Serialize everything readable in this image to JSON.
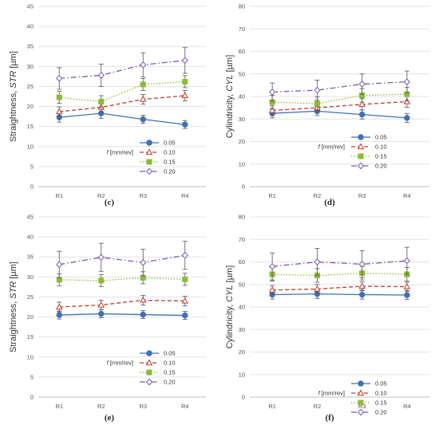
{
  "legend_title": "f [mm/rev]",
  "series_style": [
    {
      "name": "0.05",
      "color": "#3e70b5",
      "dash": "",
      "marker": "circle"
    },
    {
      "name": "0.10",
      "color": "#c0392b",
      "dash": "5,3",
      "marker": "triangle"
    },
    {
      "name": "0.15",
      "color": "#8dbb35",
      "dash": "1.5,2",
      "marker": "square"
    },
    {
      "name": "0.20",
      "color": "#7a5aa6",
      "dash": "7,3,1.5,3",
      "marker": "diamond"
    }
  ],
  "chart_data": [
    {
      "panel_label": "(c)",
      "type": "line",
      "ylabel": "Straightness, STR [µm]",
      "ylim": [
        0,
        45
      ],
      "yticks": [
        0,
        5,
        10,
        15,
        20,
        25,
        30,
        35,
        40,
        45
      ],
      "categories": [
        "R1",
        "R2",
        "R3",
        "R4"
      ],
      "legend_position": "bottom-right",
      "series": [
        {
          "name": "0.05",
          "values": [
            17.3,
            18.3,
            16.8,
            15.5
          ],
          "errors": [
            1.2,
            1.3,
            1.0,
            1.0
          ]
        },
        {
          "name": "0.10",
          "values": [
            18.7,
            19.8,
            21.8,
            22.7
          ],
          "errors": [
            1.2,
            1.2,
            1.2,
            1.3
          ]
        },
        {
          "name": "0.15",
          "values": [
            22.3,
            21.2,
            25.5,
            26.2
          ],
          "errors": [
            1.5,
            1.5,
            1.5,
            1.5
          ]
        },
        {
          "name": "0.20",
          "values": [
            27.0,
            27.8,
            30.4,
            31.5
          ],
          "errors": [
            2.7,
            2.8,
            3.0,
            3.2
          ]
        }
      ]
    },
    {
      "panel_label": "(d)",
      "type": "line",
      "ylabel": "Cylindricity, CYL [µm]",
      "ylim": [
        0,
        80
      ],
      "yticks": [
        0,
        10,
        20,
        30,
        40,
        50,
        60,
        70,
        80
      ],
      "categories": [
        "R1",
        "R2",
        "R3",
        "R4"
      ],
      "legend_position": "bottom-right",
      "series": [
        {
          "name": "0.05",
          "values": [
            32.5,
            33.5,
            32.0,
            30.5
          ],
          "errors": [
            2.0,
            2.0,
            2.0,
            2.0
          ]
        },
        {
          "name": "0.10",
          "values": [
            33.8,
            35.0,
            36.5,
            37.7
          ],
          "errors": [
            2.0,
            2.0,
            2.5,
            2.5
          ]
        },
        {
          "name": "0.15",
          "values": [
            37.5,
            36.8,
            40.5,
            41.0
          ],
          "errors": [
            3.0,
            3.0,
            3.0,
            3.0
          ]
        },
        {
          "name": "0.20",
          "values": [
            42.0,
            42.8,
            45.5,
            46.5
          ],
          "errors": [
            4.0,
            4.5,
            4.5,
            4.8
          ]
        }
      ]
    },
    {
      "panel_label": "(e)",
      "type": "line",
      "ylabel": "Straightness, STR [µm]",
      "ylim": [
        0,
        45
      ],
      "yticks": [
        0,
        5,
        10,
        15,
        20,
        25,
        30,
        35,
        40,
        45
      ],
      "categories": [
        "R1",
        "R2",
        "R3",
        "R4"
      ],
      "legend_position": "bottom-right",
      "series": [
        {
          "name": "0.05",
          "values": [
            20.5,
            20.8,
            20.6,
            20.4
          ],
          "errors": [
            1.0,
            1.0,
            1.0,
            1.0
          ]
        },
        {
          "name": "0.10",
          "values": [
            22.5,
            23.0,
            24.2,
            24.0
          ],
          "errors": [
            1.2,
            1.2,
            1.2,
            1.2
          ]
        },
        {
          "name": "0.15",
          "values": [
            29.3,
            29.1,
            29.8,
            29.4
          ],
          "errors": [
            1.5,
            1.5,
            1.5,
            1.5
          ]
        },
        {
          "name": "0.20",
          "values": [
            33.1,
            34.9,
            33.6,
            35.4
          ],
          "errors": [
            3.3,
            3.5,
            3.3,
            3.5
          ]
        }
      ]
    },
    {
      "panel_label": "(f)",
      "type": "line",
      "ylabel": "Cylindricity, CYL [µm]",
      "ylim": [
        0,
        80
      ],
      "yticks": [
        0,
        10,
        20,
        30,
        40,
        50,
        60,
        70,
        80
      ],
      "categories": [
        "R1",
        "R2",
        "R3",
        "R4"
      ],
      "legend_position": "bottom-right",
      "series": [
        {
          "name": "0.05",
          "values": [
            45.5,
            45.8,
            45.5,
            45.3
          ],
          "errors": [
            2.0,
            2.0,
            2.0,
            2.0
          ]
        },
        {
          "name": "0.10",
          "values": [
            47.5,
            48.0,
            49.2,
            49.0
          ],
          "errors": [
            2.0,
            2.0,
            2.0,
            2.0
          ]
        },
        {
          "name": "0.15",
          "values": [
            54.5,
            54.0,
            55.0,
            54.5
          ],
          "errors": [
            3.0,
            3.0,
            3.0,
            3.0
          ]
        },
        {
          "name": "0.20",
          "values": [
            58.0,
            60.0,
            59.0,
            60.5
          ],
          "errors": [
            6.0,
            6.0,
            6.0,
            6.0
          ]
        }
      ]
    }
  ]
}
